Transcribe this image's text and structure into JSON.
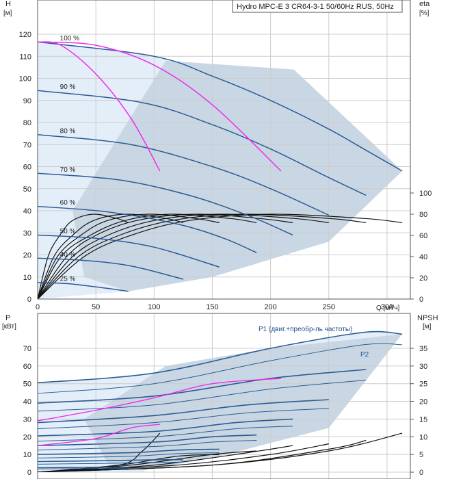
{
  "chart_data": [
    {
      "type": "line",
      "title": "Hydro MPC-E 3 CR64-3-1 50/60Hz RUS, 50Hz",
      "ylabel": "H",
      "yunit": "[м]",
      "y2label": "eta",
      "y2unit": "[%]",
      "xlabel": "Q",
      "xunit": "[м³/ч]",
      "xlim": [
        0,
        320
      ],
      "ylim": [
        0,
        130
      ],
      "y2lim": [
        0,
        100
      ],
      "xticks": [
        0,
        50,
        100,
        150,
        200,
        250,
        300
      ],
      "yticks": [
        0,
        10,
        20,
        30,
        40,
        50,
        60,
        70,
        80,
        90,
        100,
        110,
        120
      ],
      "y2ticks": [
        0,
        20,
        40,
        60,
        80,
        100
      ],
      "grid": true,
      "speed_labels": [
        "100 %",
        "90 %",
        "80 %",
        "70 %",
        "60 %",
        "50 %",
        "40 %",
        "25 %"
      ],
      "head_curves": [
        {
          "speed": "100 %",
          "x": [
            0,
            100,
            150,
            200,
            250,
            280,
            313
          ],
          "y": [
            116.5,
            110,
            101,
            90,
            77,
            68,
            58
          ]
        },
        {
          "speed": "90 %",
          "x": [
            0,
            90,
            150,
            200,
            250,
            282
          ],
          "y": [
            94.5,
            89,
            79,
            68,
            55,
            47
          ]
        },
        {
          "speed": "80 %",
          "x": [
            0,
            80,
            150,
            200,
            250
          ],
          "y": [
            74.5,
            70,
            60,
            50,
            38
          ]
        },
        {
          "speed": "70 %",
          "x": [
            0,
            70,
            130,
            180,
            219
          ],
          "y": [
            57,
            54,
            47,
            38,
            29
          ]
        },
        {
          "speed": "60 %",
          "x": [
            0,
            60,
            120,
            160,
            188
          ],
          "y": [
            42,
            39.5,
            34,
            27.5,
            21
          ]
        },
        {
          "speed": "50 %",
          "x": [
            0,
            50,
            100,
            156
          ],
          "y": [
            29,
            27.5,
            23.5,
            14.5
          ]
        },
        {
          "speed": "40 %",
          "x": [
            0,
            40,
            80,
            125
          ],
          "y": [
            18.5,
            17.5,
            15,
            9
          ]
        },
        {
          "speed": "25 %",
          "x": [
            0,
            25,
            50,
            78
          ],
          "y": [
            7.5,
            7,
            5.5,
            3.5
          ]
        }
      ],
      "system_curves": [
        {
          "x": [
            0,
            20,
            50,
            80,
            105
          ],
          "y": [
            116.5,
            115,
            102,
            82,
            58
          ]
        },
        {
          "x": [
            0,
            50,
            100,
            150,
            209
          ],
          "y": [
            116.5,
            115,
            106,
            88,
            58
          ]
        }
      ],
      "eta_curves": [
        {
          "x": [
            0,
            40,
            80,
            130,
            200,
            280,
            313
          ],
          "y": [
            0,
            40,
            60,
            74,
            80,
            76,
            72
          ]
        },
        {
          "x": [
            0,
            35,
            70,
            115,
            175,
            250,
            282
          ],
          "y": [
            0,
            40,
            60,
            74,
            80,
            76,
            72
          ]
        },
        {
          "x": [
            0,
            30,
            60,
            100,
            155,
            220,
            250
          ],
          "y": [
            0,
            40,
            60,
            74,
            80,
            76,
            72
          ]
        },
        {
          "x": [
            0,
            25,
            50,
            85,
            135,
            190,
            219
          ],
          "y": [
            0,
            40,
            60,
            74,
            80,
            76,
            72
          ]
        },
        {
          "x": [
            0,
            20,
            45,
            75,
            115,
            165,
            188
          ],
          "y": [
            0,
            40,
            60,
            74,
            80,
            76,
            72
          ]
        },
        {
          "x": [
            0,
            17,
            37,
            60,
            95,
            135,
            156
          ],
          "y": [
            0,
            40,
            60,
            74,
            80,
            76,
            72
          ]
        },
        {
          "x": [
            0,
            14,
            30,
            48,
            76,
            110,
            125
          ],
          "y": [
            0,
            40,
            60,
            74,
            80,
            76,
            72
          ]
        },
        {
          "x": [
            0,
            9,
            19,
            30,
            48,
            68,
            78
          ],
          "y": [
            0,
            40,
            60,
            74,
            80,
            76,
            72
          ]
        }
      ]
    },
    {
      "type": "line",
      "ylabel": "P",
      "yunit": "[кВт]",
      "y2label": "NPSH",
      "y2unit": "[м]",
      "xlim": [
        0,
        320
      ],
      "ylim": [
        0,
        80
      ],
      "y2lim": [
        0,
        40
      ],
      "yticks": [
        0,
        10,
        20,
        30,
        40,
        50,
        60,
        70
      ],
      "y2ticks": [
        0,
        5,
        10,
        15,
        20,
        25,
        30,
        35
      ],
      "grid": true,
      "annotations": [
        "P1 (двиг.+преобр-ль частоты)",
        "P2"
      ],
      "p1_curves": [
        {
          "x": [
            0,
            100,
            200,
            280,
            313
          ],
          "y": [
            50.5,
            56,
            70,
            79,
            78
          ]
        },
        {
          "x": [
            0,
            100,
            200,
            282
          ],
          "y": [
            39,
            43,
            53,
            58
          ]
        },
        {
          "x": [
            0,
            100,
            180,
            250
          ],
          "y": [
            28,
            32,
            38,
            41
          ]
        },
        {
          "x": [
            0,
            100,
            170,
            219
          ],
          "y": [
            20.5,
            23,
            28,
            30
          ]
        },
        {
          "x": [
            0,
            100,
            150,
            188
          ],
          "y": [
            15,
            17,
            20,
            21
          ]
        },
        {
          "x": [
            0,
            80,
            120,
            156
          ],
          "y": [
            10,
            11,
            12.5,
            13
          ]
        },
        {
          "x": [
            0,
            60,
            100,
            125
          ],
          "y": [
            6,
            6.5,
            7,
            7
          ]
        },
        {
          "x": [
            0,
            40,
            78
          ],
          "y": [
            2.5,
            2.7,
            2.8
          ]
        }
      ],
      "p2_curves": [
        {
          "x": [
            0,
            100,
            200,
            280,
            313
          ],
          "y": [
            44.5,
            50,
            63,
            72,
            72
          ]
        },
        {
          "x": [
            0,
            100,
            200,
            282
          ],
          "y": [
            34.5,
            38,
            47,
            52
          ]
        },
        {
          "x": [
            0,
            100,
            180,
            250
          ],
          "y": [
            24.5,
            28,
            33.5,
            36
          ]
        },
        {
          "x": [
            0,
            100,
            170,
            219
          ],
          "y": [
            17.5,
            20,
            24.5,
            26
          ]
        },
        {
          "x": [
            0,
            100,
            150,
            188
          ],
          "y": [
            12.5,
            14.5,
            17,
            18
          ]
        },
        {
          "x": [
            0,
            80,
            120,
            156
          ],
          "y": [
            8,
            9,
            10.5,
            11
          ]
        },
        {
          "x": [
            0,
            60,
            100,
            125
          ],
          "y": [
            4.5,
            5,
            5.5,
            5.7
          ]
        },
        {
          "x": [
            0,
            40,
            78
          ],
          "y": [
            1.8,
            2,
            2.1
          ]
        }
      ],
      "system_p_curves": [
        {
          "x": [
            0,
            50,
            80,
            105
          ],
          "y": [
            15,
            19,
            25,
            27
          ]
        },
        {
          "x": [
            0,
            50,
            100,
            150,
            209
          ],
          "y": [
            29,
            35,
            42,
            50,
            53
          ]
        }
      ],
      "npsh_curves": [
        {
          "x": [
            0,
            150,
            250,
            313
          ],
          "y": [
            0,
            2,
            6,
            11
          ]
        },
        {
          "x": [
            0,
            150,
            250,
            282
          ],
          "y": [
            0,
            2,
            6.5,
            9
          ]
        },
        {
          "x": [
            0,
            120,
            200,
            250
          ],
          "y": [
            0,
            2,
            5,
            8
          ]
        },
        {
          "x": [
            0,
            100,
            180,
            219
          ],
          "y": [
            0,
            2,
            5.5,
            7.5
          ]
        },
        {
          "x": [
            0,
            80,
            150,
            188
          ],
          "y": [
            0,
            2,
            5,
            6
          ]
        },
        {
          "x": [
            0,
            70,
            120,
            156
          ],
          "y": [
            0,
            2,
            4.5,
            5
          ]
        },
        {
          "x": [
            0,
            70,
            90,
            105
          ],
          "y": [
            0,
            2,
            6,
            11
          ]
        }
      ]
    }
  ],
  "colors": {
    "envelope": "#c9d7e4",
    "envelope_light": "#e4eef9",
    "curve_blue": "#2a5b93",
    "curve_black": "#111111",
    "curve_magenta": "#ee2bee",
    "grid": "#cccccc"
  }
}
